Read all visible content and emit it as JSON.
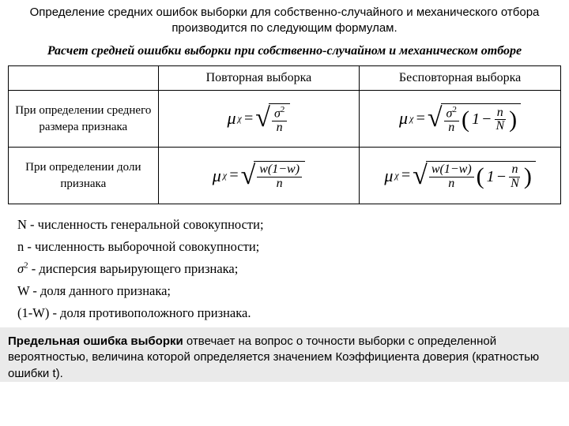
{
  "intro": "Определение средних ошибок выборки для собственно-случайного и механического отбора производится по следующим формулам.",
  "subtitle": "Расчет средней ошибки выборки при собственно-случайном и механическом отборе",
  "table": {
    "col1": "",
    "col2": "Повторная выборка",
    "col3": "Бесповторная выборка",
    "row1h": "При определении среднего размера признака",
    "row2h": "При определении доли признака"
  },
  "math": {
    "mu": "μ",
    "chi": "χ",
    "eq": " = ",
    "sigma": "σ",
    "sq": "2",
    "n": "n",
    "N": "N",
    "w": "w",
    "one": "1",
    "minus": "−",
    "lp": "(",
    "rp": ")",
    "root": "√"
  },
  "defs": {
    "d1_a": "N",
    "d1_b": " - численность генеральной совокупности;",
    "d2_a": "n",
    "d2_b": " - численность выборочной совокупности;",
    "d3_a": "σ",
    "d3_sup": "2",
    "d3_b": " - дисперсия варьирующего признака;",
    "d4_a": "W",
    "d4_b": " - доля данного признака;",
    "d5_a": "(1-W)",
    "d5_b": " - доля противоположного признака."
  },
  "footer_bold": "Предельная ошибка выборки",
  "footer_rest": " отвечает на вопрос о точности выборки с определенной вероятностью, величина которой определяется значением Коэффициента доверия (кратностью ошибки t)."
}
